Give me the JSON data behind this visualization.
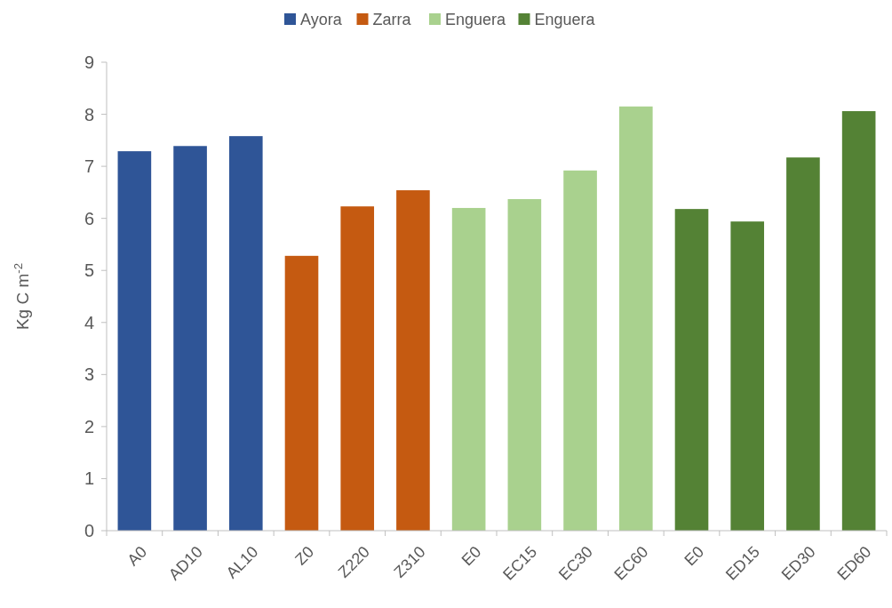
{
  "chart_data": {
    "type": "bar",
    "ylabel": "Kg C m$^{-2}$",
    "categories": [
      "A0",
      "AD10",
      "AL10",
      "Z0",
      "Z220",
      "Z310",
      "E0",
      "EC15",
      "EC30",
      "EC60",
      "E0",
      "ED15",
      "ED30",
      "ED60"
    ],
    "series": [
      {
        "name": "Ayora",
        "color": "#2f5597",
        "values": [
          7.29,
          7.39,
          7.58,
          null,
          null,
          null,
          null,
          null,
          null,
          null,
          null,
          null,
          null,
          null
        ]
      },
      {
        "name": "Zarra",
        "color": "#c55a11",
        "values": [
          null,
          null,
          null,
          5.28,
          6.23,
          6.54,
          null,
          null,
          null,
          null,
          null,
          null,
          null,
          null
        ]
      },
      {
        "name": "Enguera",
        "color": "#a9d18e",
        "values": [
          null,
          null,
          null,
          null,
          null,
          null,
          6.2,
          6.37,
          6.92,
          8.15,
          null,
          null,
          null,
          null
        ]
      },
      {
        "name": "Enguera",
        "color": "#548235",
        "values": [
          null,
          null,
          null,
          null,
          null,
          null,
          null,
          null,
          null,
          null,
          6.18,
          5.94,
          7.17,
          8.06
        ]
      }
    ],
    "ylim": [
      0,
      9
    ],
    "yticks": [
      0,
      1,
      2,
      3,
      4,
      5,
      6,
      7,
      8,
      9
    ],
    "legend": "top",
    "grid": false
  }
}
